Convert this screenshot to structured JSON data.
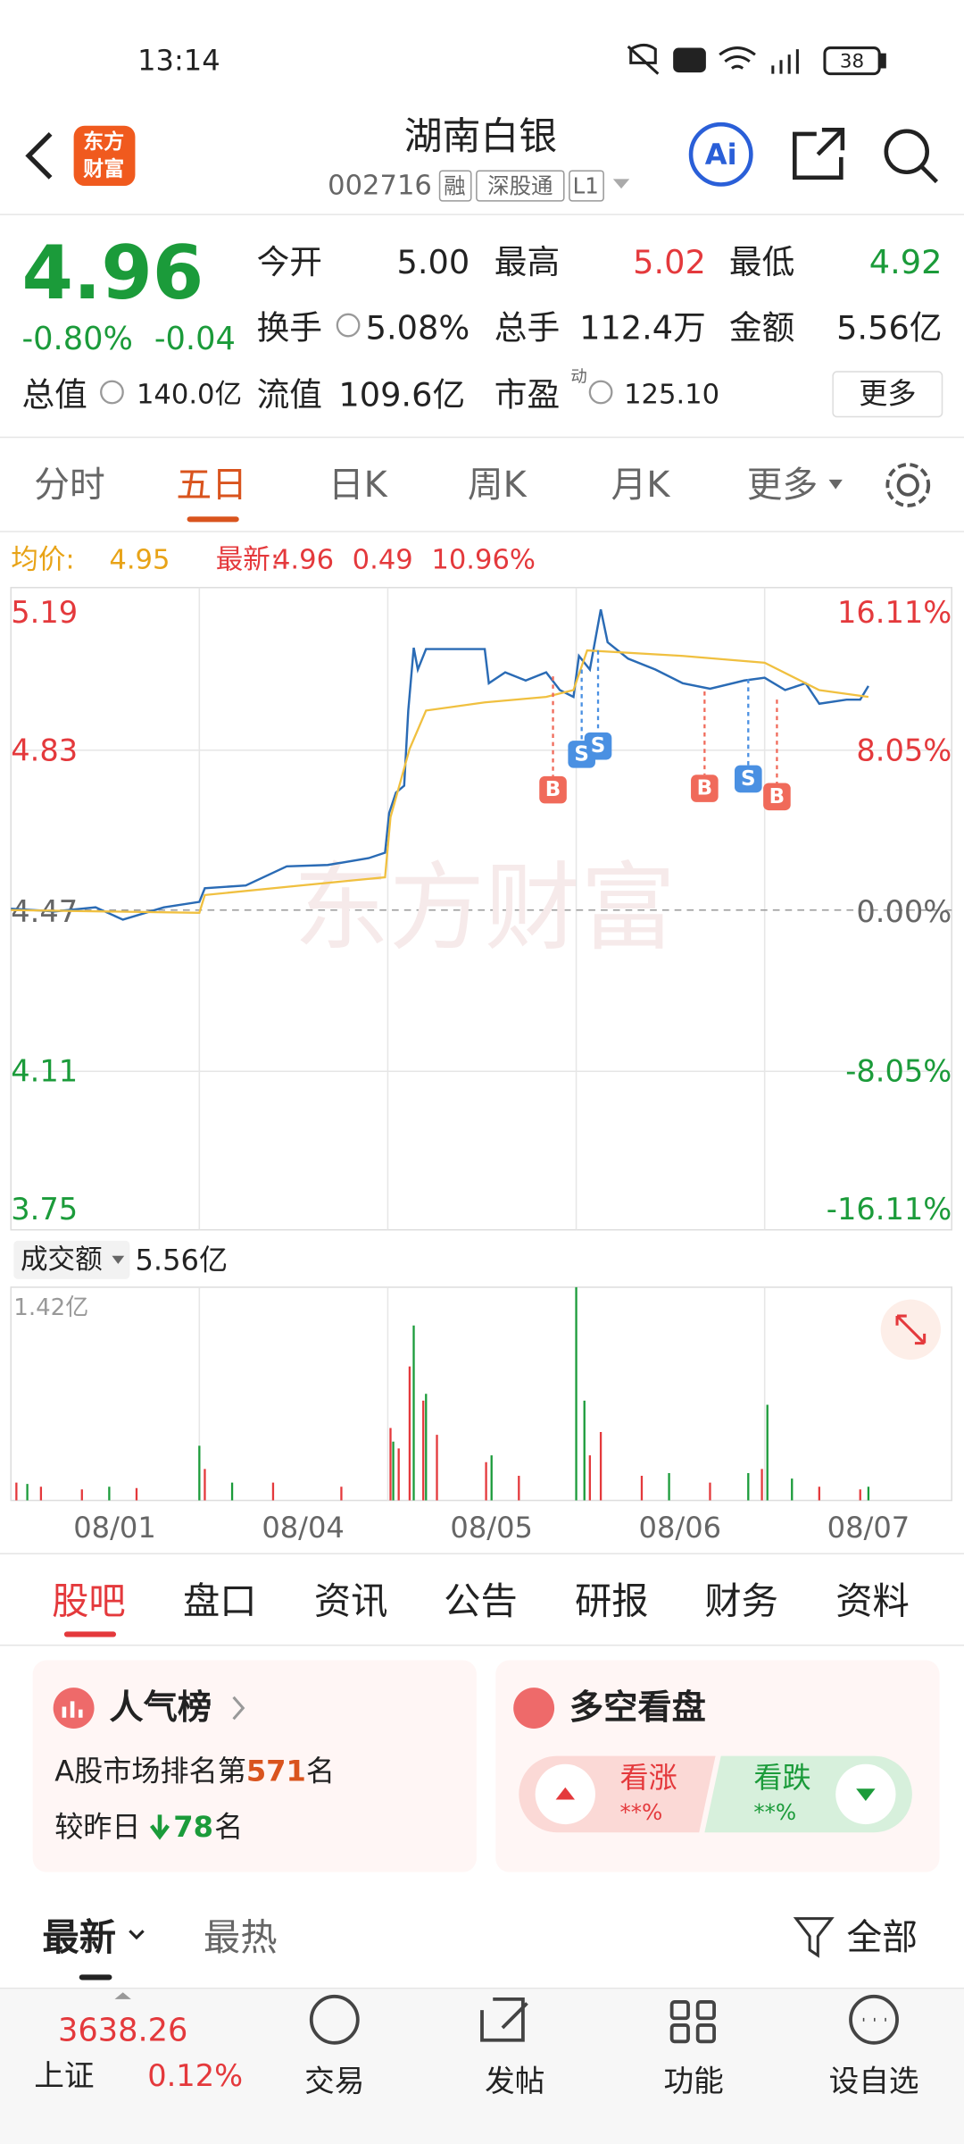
{
  "status": {
    "time": "13:14",
    "battery": "38"
  },
  "header": {
    "logo_top": "东方",
    "logo_bottom": "财富",
    "title": "湖南白银",
    "code": "002716",
    "tags": [
      "融",
      "深股通",
      "L1"
    ],
    "ai": "Ai"
  },
  "quote": {
    "price": "4.96",
    "change_pct": "-0.80%",
    "change": "-0.04",
    "fields": [
      {
        "label": "今开",
        "value": "5.00"
      },
      {
        "label": "最高",
        "value": "5.02"
      },
      {
        "label": "最低",
        "value": "4.92"
      },
      {
        "label": "换手",
        "value": "5.08%"
      },
      {
        "label": "总手",
        "value": "112.4万"
      },
      {
        "label": "金额",
        "value": "5.56亿"
      },
      {
        "label": "总值",
        "value": "140.0亿"
      },
      {
        "label": "流值",
        "value": "109.6亿"
      },
      {
        "label": "市盈",
        "sup": "动",
        "value": "125.10"
      }
    ],
    "more": "更多"
  },
  "chart_tabs": [
    "分时",
    "五日",
    "日K",
    "周K",
    "月K",
    "更多"
  ],
  "summary": {
    "avg_label": "均价:",
    "avg": "4.95",
    "latest_label": "最新:",
    "latest": "4.96",
    "gain": "0.49",
    "gain_pct": "10.96%"
  },
  "price_chart": {
    "watermark": "东方财富",
    "left_labels": [
      "5.19",
      "4.83",
      "4.47",
      "4.11",
      "3.75"
    ],
    "right_labels": [
      "16.11%",
      "8.05%",
      "0.00%",
      "-8.05%",
      "-16.11%"
    ],
    "markers": [
      "B",
      "S",
      "S",
      "B",
      "S",
      "B"
    ]
  },
  "volume": {
    "label": "成交额",
    "total": "5.56亿",
    "max": "1.42亿",
    "dates": [
      "08/01",
      "08/04",
      "08/05",
      "08/06",
      "08/07"
    ]
  },
  "section_tabs": [
    "股吧",
    "盘口",
    "资讯",
    "公告",
    "研报",
    "财务",
    "资料"
  ],
  "popularity": {
    "title": "人气榜",
    "rank_prefix": "A股市场排名第",
    "rank": "571",
    "rank_suffix": "名",
    "change_prefix": "较昨日",
    "change": "78",
    "change_suffix": "名"
  },
  "sentiment": {
    "title": "多空看盘",
    "bull": "看涨",
    "bull_pct": "**%",
    "bear": "看跌",
    "bear_pct": "**%"
  },
  "feed_tabs": [
    "最新",
    "最热"
  ],
  "feed_filter": "全部",
  "bottom": {
    "index_value": "3638.26",
    "index_name": "上证",
    "index_pct": "0.12%",
    "items": [
      "交易",
      "发帖",
      "功能",
      "设自选"
    ]
  }
}
